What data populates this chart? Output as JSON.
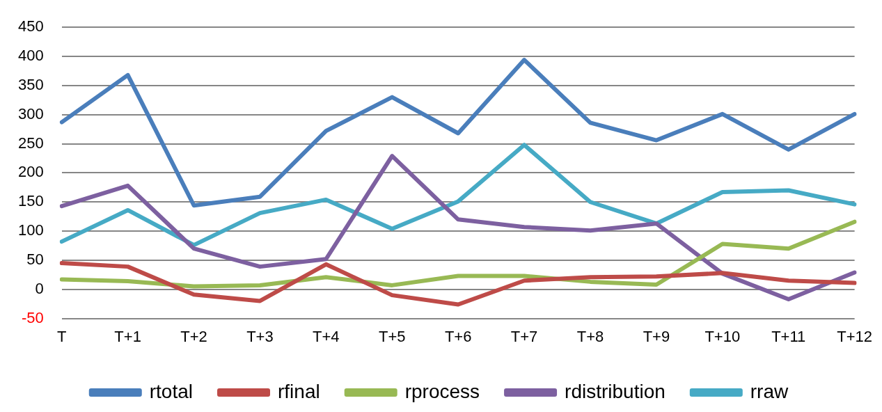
{
  "chart_data": {
    "type": "line",
    "categories": [
      "T",
      "T+1",
      "T+2",
      "T+3",
      "T+4",
      "T+5",
      "T+6",
      "T+7",
      "T+8",
      "T+9",
      "T+10",
      "T+11",
      "T+12"
    ],
    "series": [
      {
        "name": "rtotal",
        "color": "#4a7ebb",
        "values": [
          287,
          368,
          144,
          159,
          272,
          330,
          268,
          394,
          286,
          256,
          301,
          240,
          301
        ]
      },
      {
        "name": "rfinal",
        "color": "#be4b48",
        "values": [
          45,
          39,
          -9,
          -20,
          43,
          -10,
          -26,
          15,
          21,
          22,
          28,
          15,
          11
        ]
      },
      {
        "name": "rprocess",
        "color": "#98b954",
        "values": [
          17,
          14,
          5,
          7,
          21,
          7,
          23,
          23,
          13,
          8,
          78,
          70,
          116
        ]
      },
      {
        "name": "rdistribution",
        "color": "#7d60a0",
        "values": [
          143,
          178,
          70,
          39,
          52,
          229,
          120,
          107,
          101,
          113,
          27,
          -17,
          29
        ]
      },
      {
        "name": "rraw",
        "color": "#46aac5",
        "values": [
          82,
          136,
          76,
          131,
          154,
          104,
          151,
          248,
          150,
          113,
          167,
          170,
          146
        ]
      }
    ],
    "ylim": [
      -50,
      450
    ],
    "yticks": [
      -50,
      0,
      50,
      100,
      150,
      200,
      250,
      300,
      350,
      400,
      450
    ],
    "grid": "y",
    "legend": "bottom",
    "marker": "none",
    "line_style": "solid"
  }
}
